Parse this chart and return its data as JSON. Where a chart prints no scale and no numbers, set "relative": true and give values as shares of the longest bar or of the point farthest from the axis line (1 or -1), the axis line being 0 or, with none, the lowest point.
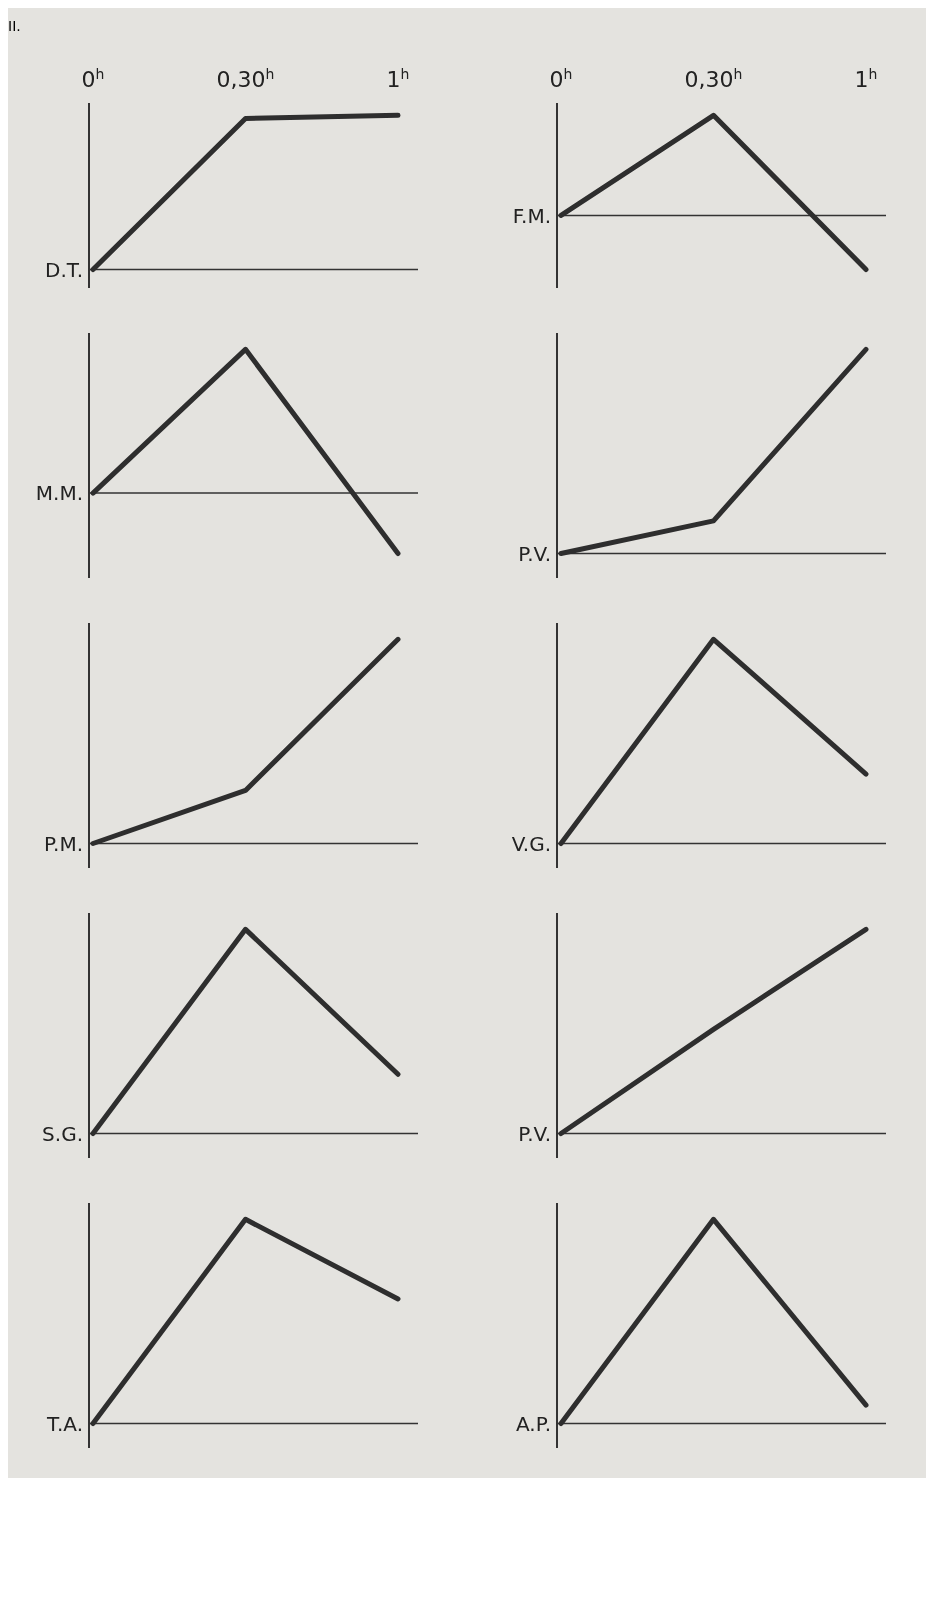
{
  "chart_data": [
    {
      "type": "line",
      "title": "II.",
      "categories": [
        "0$^{h}$",
        "0,30$^{h}$",
        "1$^{h}$"
      ],
      "relative": true,
      "tick_labels": "x",
      "ylabel": "D.T.",
      "series": [
        {
          "color": "#2e2e2e",
          "values": [
            0,
            0.98,
            1
          ]
        }
      ]
    },
    {
      "type": "line",
      "categories": [
        "0$^{h}$",
        "0,30$^{h}$",
        "1$^{h}$"
      ],
      "relative": true,
      "tick_labels": "x",
      "ylabel": "F.M.",
      "series": [
        {
          "color": "#2e2e2e",
          "values": [
            0,
            1,
            -0.54
          ]
        }
      ]
    },
    {
      "type": "line",
      "categories": [
        null,
        null,
        null
      ],
      "relative": true,
      "tick_labels": false,
      "ylabel": "M.M.",
      "series": [
        {
          "color": "#2e2e2e",
          "values": [
            0,
            1,
            -0.42
          ]
        }
      ]
    },
    {
      "type": "line",
      "categories": [
        null,
        null,
        null
      ],
      "relative": true,
      "tick_labels": false,
      "ylabel": "P.V.",
      "series": [
        {
          "color": "#2e2e2e",
          "values": [
            0,
            0.16,
            1
          ]
        }
      ]
    },
    {
      "type": "line",
      "categories": [
        null,
        null,
        null
      ],
      "relative": true,
      "tick_labels": false,
      "ylabel": "P.M.",
      "series": [
        {
          "color": "#2e2e2e",
          "values": [
            0,
            0.26,
            1
          ]
        }
      ]
    },
    {
      "type": "line",
      "categories": [
        null,
        null,
        null
      ],
      "relative": true,
      "tick_labels": false,
      "ylabel": "V.G.",
      "series": [
        {
          "color": "#2e2e2e",
          "values": [
            0,
            1,
            0.34
          ]
        }
      ]
    },
    {
      "type": "line",
      "categories": [
        null,
        null,
        null
      ],
      "relative": true,
      "tick_labels": false,
      "ylabel": "S.G.",
      "series": [
        {
          "color": "#2e2e2e",
          "values": [
            0,
            1,
            0.29
          ]
        }
      ]
    },
    {
      "type": "line",
      "categories": [
        null,
        null,
        null
      ],
      "relative": true,
      "tick_labels": false,
      "ylabel": "P.V.",
      "series": [
        {
          "color": "#2e2e2e",
          "values": [
            0,
            0.51,
            1
          ]
        }
      ]
    },
    {
      "type": "line",
      "categories": [
        null,
        null,
        null
      ],
      "relative": true,
      "tick_labels": false,
      "ylabel": "T.A.",
      "series": [
        {
          "color": "#2e2e2e",
          "values": [
            0,
            1,
            0.61
          ]
        }
      ]
    },
    {
      "type": "line",
      "categories": [
        null,
        null,
        null
      ],
      "relative": true,
      "tick_labels": false,
      "ylabel": "A.P.",
      "series": [
        {
          "color": "#2e2e2e",
          "values": [
            0,
            1,
            0.09
          ]
        }
      ]
    }
  ]
}
